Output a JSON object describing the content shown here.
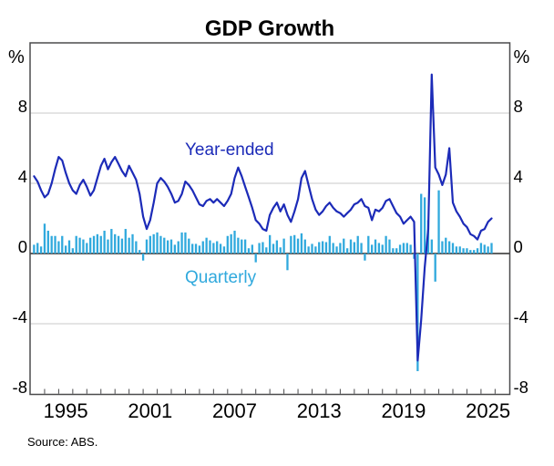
{
  "title": "GDP Growth",
  "source": "Source:   ABS.",
  "axis": {
    "unit": "%"
  },
  "annotations": {
    "year_ended": "Year-ended",
    "quarterly": "Quarterly"
  },
  "colors": {
    "line": "#1C2BB8",
    "bars": "#30A9DD",
    "grid": "#C8C8C8",
    "zero": "#000000",
    "frame": "#4B4B4D",
    "text": "#000000"
  },
  "chart_data": {
    "type": "bar+line",
    "title": "GDP Growth",
    "unit": "%",
    "frequency": "quarterly",
    "x_start": "1993Q1",
    "x_end": "2025Q3",
    "x_domain_years": [
      1993,
      2027
    ],
    "ylim": [
      -8,
      12
    ],
    "y_ticks": [
      8,
      4,
      0,
      -4,
      -8
    ],
    "y_gridlines": [
      8,
      4,
      -4
    ],
    "x_tick_years_labeled": [
      1995,
      2001,
      2007,
      2013,
      2019,
      2025
    ],
    "grid": true,
    "legend_position": "inline",
    "series": [
      {
        "name": "Year-ended",
        "type": "line",
        "values": [
          4.4,
          4.1,
          3.6,
          3.2,
          3.4,
          4.0,
          4.8,
          5.5,
          5.3,
          4.6,
          4.0,
          3.6,
          3.4,
          3.9,
          4.2,
          3.8,
          3.3,
          3.6,
          4.3,
          5.0,
          5.4,
          4.8,
          5.2,
          5.5,
          5.1,
          4.7,
          4.4,
          5.0,
          4.6,
          4.2,
          3.4,
          2.1,
          1.4,
          1.9,
          2.9,
          4.0,
          4.3,
          4.1,
          3.8,
          3.4,
          2.9,
          3.0,
          3.4,
          4.1,
          3.9,
          3.6,
          3.2,
          2.8,
          2.7,
          3.0,
          3.1,
          2.9,
          3.1,
          2.9,
          2.7,
          3.0,
          3.4,
          4.3,
          4.9,
          4.4,
          3.8,
          3.2,
          2.6,
          1.9,
          1.7,
          1.4,
          1.3,
          2.2,
          2.6,
          2.9,
          2.4,
          2.8,
          2.2,
          1.8,
          2.4,
          3.1,
          4.3,
          4.7,
          3.9,
          3.1,
          2.5,
          2.2,
          2.4,
          2.7,
          2.9,
          2.6,
          2.4,
          2.3,
          2.1,
          2.3,
          2.5,
          2.8,
          2.9,
          3.1,
          2.7,
          2.6,
          1.9,
          2.5,
          2.4,
          2.6,
          3.0,
          3.1,
          2.7,
          2.3,
          2.1,
          1.7,
          1.9,
          2.1,
          1.8,
          -6.1,
          -3.8,
          -0.8,
          1.4,
          10.2,
          4.9,
          4.5,
          3.9,
          4.5,
          6.0,
          2.9,
          2.4,
          2.1,
          1.7,
          1.5,
          1.1,
          1.0,
          0.8,
          1.3,
          1.4,
          1.8,
          2.0
        ]
      },
      {
        "name": "Quarterly",
        "type": "bar",
        "values": [
          0.5,
          0.6,
          0.4,
          1.7,
          1.3,
          1.0,
          1.0,
          0.7,
          1.0,
          0.45,
          0.75,
          0.3,
          1.0,
          0.9,
          0.8,
          0.6,
          0.9,
          1.0,
          1.1,
          1.0,
          1.3,
          0.8,
          1.4,
          1.1,
          1.0,
          0.85,
          1.4,
          0.9,
          1.1,
          0.7,
          0.2,
          -0.4,
          0.8,
          1.0,
          1.1,
          1.2,
          1.0,
          0.9,
          0.75,
          0.8,
          0.5,
          0.7,
          1.2,
          1.2,
          0.85,
          0.55,
          0.55,
          0.45,
          0.7,
          0.9,
          0.75,
          0.6,
          0.7,
          0.55,
          0.4,
          1.0,
          1.1,
          1.3,
          0.9,
          0.8,
          0.8,
          0.3,
          0.5,
          -0.5,
          0.6,
          0.65,
          0.35,
          1.05,
          0.55,
          0.75,
          0.35,
          0.85,
          -0.95,
          1.0,
          1.05,
          0.85,
          1.15,
          0.8,
          0.4,
          0.55,
          0.4,
          0.65,
          0.7,
          0.65,
          1.0,
          0.6,
          0.4,
          0.6,
          0.85,
          0.3,
          0.8,
          0.65,
          1.0,
          0.6,
          -0.4,
          1.0,
          0.5,
          0.8,
          0.6,
          0.5,
          1.0,
          0.8,
          0.3,
          0.3,
          0.5,
          0.6,
          0.6,
          0.5,
          -0.3,
          -6.7,
          3.4,
          3.2,
          1.9,
          0.8,
          -1.6,
          3.6,
          0.7,
          0.9,
          0.7,
          0.6,
          0.4,
          0.4,
          0.3,
          0.3,
          0.2,
          0.2,
          0.3,
          0.6,
          0.5,
          0.4,
          0.6
        ]
      }
    ]
  }
}
